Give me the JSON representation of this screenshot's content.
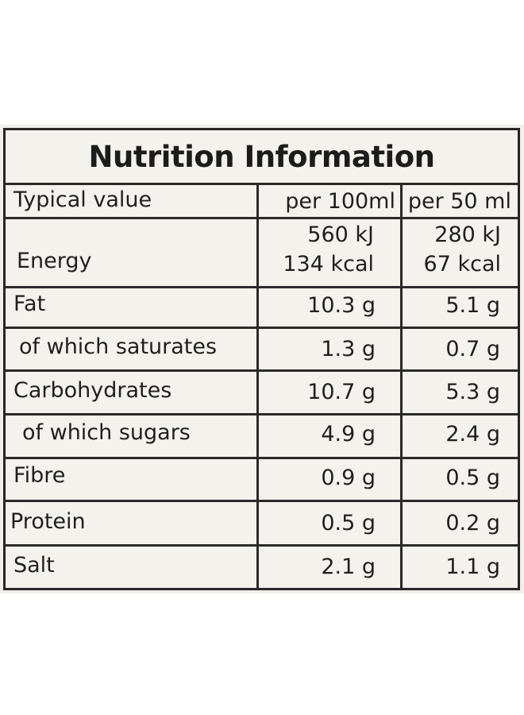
{
  "title": "Nutrition Information",
  "header": {
    "label": "Typical value",
    "col1": "per 100ml",
    "col2": "per 50 ml"
  },
  "rows": [
    {
      "label": "Energy",
      "v1a": "560 kJ",
      "v1b": "134 kcal",
      "v2a": "280 kJ",
      "v2b": "67 kcal"
    },
    {
      "label": "Fat",
      "v1": "10.3 g",
      "v2": "5.1 g"
    },
    {
      "label": "of which saturates",
      "v1": "1.3 g",
      "v2": "0.7 g"
    },
    {
      "label": "Carbohydrates",
      "v1": "10.7 g",
      "v2": "5.3 g"
    },
    {
      "label": "of which sugars",
      "v1": "4.9 g",
      "v2": "2.4 g"
    },
    {
      "label": "Fibre",
      "v1": "0.9 g",
      "v2": "0.5 g"
    },
    {
      "label": "Protein",
      "v1": "0.5 g",
      "v2": "0.2 g"
    },
    {
      "label": "Salt",
      "v1": "2.1 g",
      "v2": "1.1 g"
    }
  ]
}
